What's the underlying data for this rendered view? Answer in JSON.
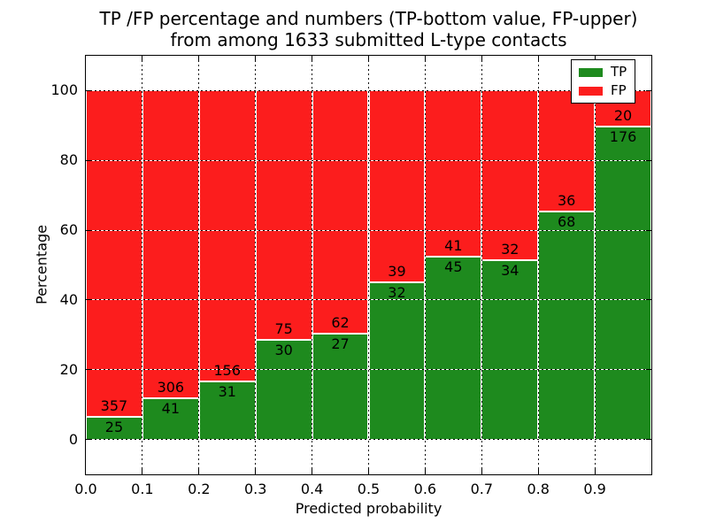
{
  "title": {
    "line1": "TP /FP percentage and numbers (TP-bottom value, FP-upper)",
    "line2": "from among 1633 submitted L-type contacts"
  },
  "colors": {
    "tp_green": "#1e8a1e",
    "fp_red": "#fc1d1d",
    "bar_edge": "#ffffff",
    "axis": "#000000",
    "background": "#ffffff"
  },
  "chart_data": {
    "type": "bar",
    "stacked": true,
    "normalized": "each bin stacks to 100%, numeric labels show raw counts (TP bottom, FP upper)",
    "title": "TP /FP percentage and numbers (TP-bottom value, FP-upper) from among 1633 submitted L-type contacts",
    "xlabel": "Predicted probability",
    "ylabel": "Percentage",
    "xlim": [
      0.0,
      1.0
    ],
    "ylim": [
      -10,
      110
    ],
    "grid": "dotted",
    "legend_position": "upper right",
    "total_contacts": 1633,
    "bin_width": 0.1,
    "bin_starts": [
      0.0,
      0.1,
      0.2,
      0.3,
      0.4,
      0.5,
      0.6,
      0.7,
      0.8,
      0.9
    ],
    "x_ticks": [
      0.0,
      0.1,
      0.2,
      0.3,
      0.4,
      0.5,
      0.6,
      0.7,
      0.8,
      0.9
    ],
    "x_tick_labels": [
      "0.0",
      "0.1",
      "0.2",
      "0.3",
      "0.4",
      "0.5",
      "0.6",
      "0.7",
      "0.8",
      "0.9"
    ],
    "y_ticks": [
      0,
      20,
      40,
      60,
      80,
      100
    ],
    "y_tick_labels": [
      "0",
      "20",
      "40",
      "60",
      "80",
      "100"
    ],
    "series": [
      {
        "name": "TP",
        "color": "#1e8a1e",
        "counts": [
          25,
          41,
          31,
          30,
          27,
          32,
          45,
          34,
          68,
          176
        ]
      },
      {
        "name": "FP",
        "color": "#fc1d1d",
        "counts": [
          357,
          306,
          156,
          75,
          62,
          39,
          41,
          32,
          36,
          20
        ]
      }
    ],
    "tp_percent_of_bin": [
      6.5,
      11.8,
      16.6,
      28.6,
      30.3,
      45.1,
      52.3,
      51.5,
      65.4,
      89.8
    ]
  }
}
